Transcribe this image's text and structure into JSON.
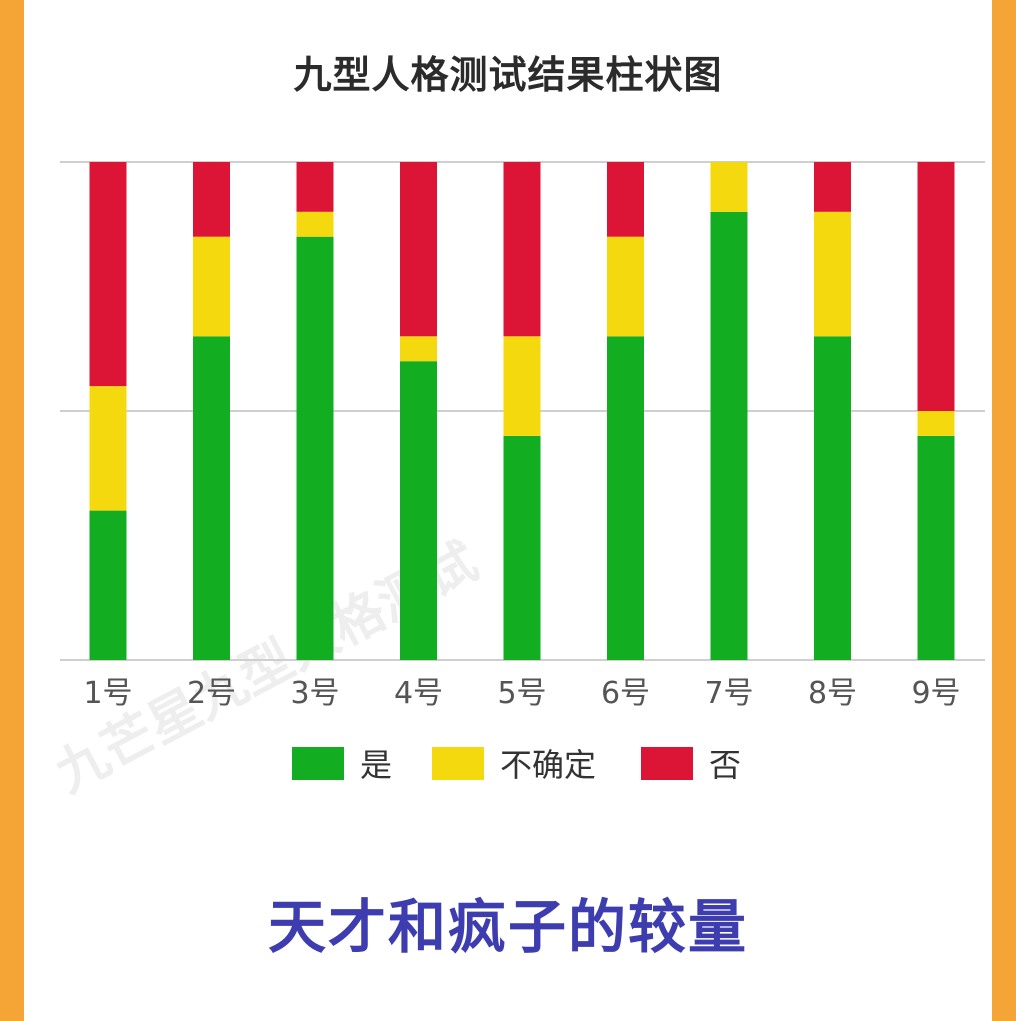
{
  "title": "九型人格测试结果柱状图",
  "subtitle": "天才和疯子的较量",
  "watermark": "九芒星九型人格测试",
  "colors": {
    "yes": "#13ad22",
    "unsure": "#f5d90f",
    "no": "#dc1537",
    "frame": "#f5a535",
    "subtitle": "#3d3db0",
    "grid": "#cfcfcf"
  },
  "chart_data": {
    "type": "bar",
    "stacked": true,
    "normalized": true,
    "categories": [
      "1号",
      "2号",
      "3号",
      "4号",
      "5号",
      "6号",
      "7号",
      "8号",
      "9号"
    ],
    "series": [
      {
        "name": "是",
        "color": "#13ad22",
        "values": [
          30,
          65,
          85,
          60,
          45,
          65,
          90,
          65,
          45
        ]
      },
      {
        "name": "不确定",
        "color": "#f5d90f",
        "values": [
          25,
          20,
          5,
          5,
          20,
          20,
          10,
          25,
          5
        ]
      },
      {
        "name": "否",
        "color": "#dc1537",
        "values": [
          45,
          15,
          10,
          35,
          35,
          15,
          0,
          10,
          50
        ]
      }
    ],
    "ylim": [
      0,
      100
    ],
    "gridlines": [
      0,
      50,
      100
    ],
    "legend_position": "bottom"
  }
}
